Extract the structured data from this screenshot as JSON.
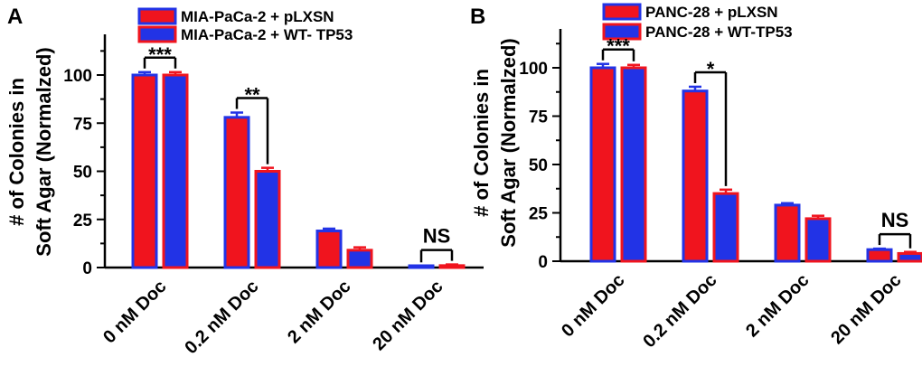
{
  "chart_data": [
    {
      "type": "bar",
      "panel_label": "A",
      "ylabel_lines": [
        "# of Colonies in",
        "Soft Agar (Normalzed)"
      ],
      "xlabel": "",
      "ylim": [
        0,
        120
      ],
      "yticks": [
        0,
        25,
        50,
        75,
        100
      ],
      "categories": [
        "0 nM Doc",
        "0.2 nM Doc",
        "2 nM Doc",
        "20 nM Doc"
      ],
      "series": [
        {
          "name": "MIA-PaCa-2 + pLXSN",
          "fill": "#f0141e",
          "stroke": "#2233e6",
          "values": [
            100,
            78,
            19,
            0.5
          ],
          "errors": [
            1.5,
            2.5,
            1.2,
            0.3
          ]
        },
        {
          "name": "MIA-PaCa-2 + WT- TP53",
          "fill": "#2233e6",
          "stroke": "#f0141e",
          "values": [
            100,
            50,
            9,
            1
          ],
          "errors": [
            1.5,
            1.8,
            1.5,
            0.6
          ]
        }
      ],
      "significance": [
        "***",
        "**",
        "",
        "NS"
      ],
      "legend_position": "top"
    },
    {
      "type": "bar",
      "panel_label": "B",
      "ylabel_lines": [
        "# of Colonies in",
        "Soft Agar (Normalzed)"
      ],
      "xlabel": "",
      "ylim": [
        0,
        120
      ],
      "yticks": [
        0,
        25,
        50,
        75,
        100
      ],
      "categories": [
        "0 nM Doc",
        "0.2 nM Doc",
        "2 nM Doc",
        "20 nM Doc"
      ],
      "series": [
        {
          "name": "PANC-28 + pLXSN",
          "fill": "#f0141e",
          "stroke": "#2233e6",
          "values": [
            100,
            88,
            29,
            6
          ],
          "errors": [
            2,
            2.2,
            1,
            0.5
          ]
        },
        {
          "name": "PANC-28 + WT-TP53",
          "fill": "#2233e6",
          "stroke": "#f0141e",
          "values": [
            100,
            35,
            22,
            4
          ],
          "errors": [
            1.5,
            2,
            1.5,
            0.8
          ]
        }
      ],
      "significance": [
        "***",
        "*",
        "",
        "NS"
      ],
      "legend_position": "top"
    }
  ]
}
